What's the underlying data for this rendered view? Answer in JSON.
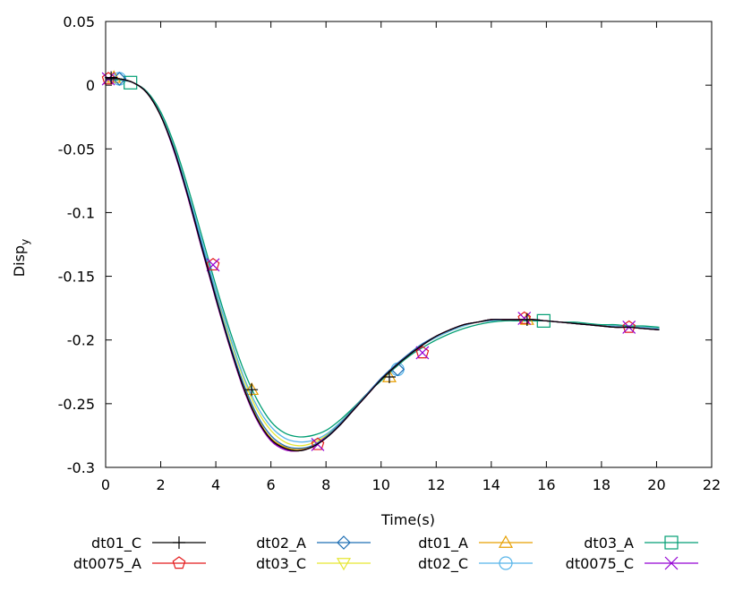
{
  "chart_data": {
    "type": "line",
    "xlabel": "Time(s)",
    "ylabel": "Disp",
    "ylabel_subscript": "y",
    "xlim": [
      0,
      22
    ],
    "ylim": [
      -0.3,
      0.05
    ],
    "xticks": [
      0,
      2,
      4,
      6,
      8,
      10,
      12,
      14,
      16,
      18,
      20,
      22
    ],
    "yticks": [
      0.05,
      0,
      -0.05,
      -0.1,
      -0.15,
      -0.2,
      -0.25,
      -0.3
    ],
    "grid": false,
    "legend_position": "bottom",
    "series": [
      {
        "name": "dt01_C",
        "color": "#000000",
        "marker": "plus",
        "x": [
          0,
          0.5,
          1,
          1.5,
          2,
          2.5,
          3,
          3.5,
          4,
          4.5,
          5,
          5.5,
          6,
          6.5,
          7,
          7.5,
          8,
          8.5,
          9,
          9.5,
          10,
          10.5,
          11,
          11.5,
          12,
          12.5,
          13,
          13.5,
          14,
          14.5,
          15,
          15.5,
          16,
          16.5,
          17,
          17.5,
          18,
          18.5,
          19,
          19.5,
          20.1
        ],
        "y": [
          0.005,
          0.005,
          0.002,
          -0.006,
          -0.024,
          -0.052,
          -0.088,
          -0.128,
          -0.167,
          -0.204,
          -0.237,
          -0.262,
          -0.278,
          -0.285,
          -0.287,
          -0.284,
          -0.277,
          -0.267,
          -0.255,
          -0.243,
          -0.231,
          -0.221,
          -0.212,
          -0.204,
          -0.197,
          -0.192,
          -0.188,
          -0.186,
          -0.184,
          -0.184,
          -0.184,
          -0.184,
          -0.185,
          -0.186,
          -0.187,
          -0.188,
          -0.189,
          -0.19,
          -0.19,
          -0.191,
          -0.192
        ],
        "markers_x": [
          0.2,
          5.3,
          10.3,
          15.3
        ],
        "markers_y": [
          0.006,
          -0.239,
          -0.229,
          -0.184
        ]
      },
      {
        "name": "dt0075_A",
        "color": "#e41a1c",
        "marker": "pentagon",
        "x": [
          0,
          0.5,
          1,
          1.5,
          2,
          2.5,
          3,
          3.5,
          4,
          4.5,
          5,
          5.5,
          6,
          6.5,
          7,
          7.5,
          8,
          8.5,
          9,
          9.5,
          10,
          10.5,
          11,
          11.5,
          12,
          12.5,
          13,
          13.5,
          14,
          14.5,
          15,
          15.5,
          16,
          16.5,
          17,
          17.5,
          18,
          18.5,
          19,
          19.5,
          20.1
        ],
        "y": [
          0.006,
          0.005,
          0.002,
          -0.006,
          -0.024,
          -0.052,
          -0.089,
          -0.129,
          -0.168,
          -0.205,
          -0.238,
          -0.263,
          -0.279,
          -0.286,
          -0.287,
          -0.284,
          -0.277,
          -0.267,
          -0.255,
          -0.243,
          -0.231,
          -0.221,
          -0.212,
          -0.204,
          -0.197,
          -0.192,
          -0.188,
          -0.186,
          -0.184,
          -0.184,
          -0.184,
          -0.184,
          -0.185,
          -0.186,
          -0.187,
          -0.188,
          -0.189,
          -0.19,
          -0.19,
          -0.191,
          -0.192
        ],
        "markers_x": [
          0.1,
          3.9,
          7.7,
          11.5,
          15.2,
          19.0
        ],
        "markers_y": [
          0.005,
          -0.141,
          -0.282,
          -0.21,
          -0.183,
          -0.19
        ]
      },
      {
        "name": "dt02_A",
        "color": "#1f6fb4",
        "marker": "diamond",
        "x": [
          0,
          0.5,
          1,
          1.5,
          2,
          2.5,
          3,
          3.5,
          4,
          4.5,
          5,
          5.5,
          6,
          6.5,
          7,
          7.5,
          8,
          8.5,
          9,
          9.5,
          10,
          10.5,
          11,
          11.5,
          12,
          12.5,
          13,
          13.5,
          14,
          14.5,
          15,
          15.5,
          16,
          16.5,
          17,
          17.5,
          18,
          18.5,
          19,
          19.5,
          20.1
        ],
        "y": [
          0.005,
          0.005,
          0.002,
          -0.006,
          -0.024,
          -0.051,
          -0.087,
          -0.126,
          -0.165,
          -0.202,
          -0.234,
          -0.259,
          -0.275,
          -0.283,
          -0.285,
          -0.283,
          -0.276,
          -0.266,
          -0.254,
          -0.242,
          -0.23,
          -0.22,
          -0.211,
          -0.203,
          -0.197,
          -0.192,
          -0.188,
          -0.186,
          -0.184,
          -0.184,
          -0.184,
          -0.184,
          -0.185,
          -0.186,
          -0.187,
          -0.188,
          -0.189,
          -0.19,
          -0.19,
          -0.191,
          -0.192
        ],
        "markers_x": [
          0.5,
          10.6
        ],
        "markers_y": [
          0.005,
          -0.223
        ]
      },
      {
        "name": "dt03_C",
        "color": "#e6e632",
        "marker": "triangle-down",
        "x": [
          0,
          0.5,
          1,
          1.5,
          2,
          2.5,
          3,
          3.5,
          4,
          4.5,
          5,
          5.5,
          6,
          6.5,
          7,
          7.5,
          8,
          8.5,
          9,
          9.5,
          10,
          10.5,
          11,
          11.5,
          12,
          12.5,
          13,
          13.5,
          14,
          14.5,
          15,
          15.5,
          16,
          16.5,
          17,
          17.5,
          18,
          18.5,
          19,
          19.5,
          20.1
        ],
        "y": [
          0.005,
          0.005,
          0.002,
          -0.006,
          -0.023,
          -0.05,
          -0.085,
          -0.124,
          -0.162,
          -0.198,
          -0.23,
          -0.255,
          -0.271,
          -0.28,
          -0.283,
          -0.281,
          -0.275,
          -0.265,
          -0.254,
          -0.242,
          -0.231,
          -0.221,
          -0.212,
          -0.204,
          -0.198,
          -0.193,
          -0.189,
          -0.186,
          -0.185,
          -0.184,
          -0.184,
          -0.185,
          -0.185,
          -0.186,
          -0.187,
          -0.188,
          -0.189,
          -0.189,
          -0.19,
          -0.19,
          -0.191
        ],
        "markers_x": [],
        "markers_y": []
      },
      {
        "name": "dt01_A",
        "color": "#e69f00",
        "marker": "triangle-up",
        "x": [
          0,
          0.5,
          1,
          1.5,
          2,
          2.5,
          3,
          3.5,
          4,
          4.5,
          5,
          5.5,
          6,
          6.5,
          7,
          7.5,
          8,
          8.5,
          9,
          9.5,
          10,
          10.5,
          11,
          11.5,
          12,
          12.5,
          13,
          13.5,
          14,
          14.5,
          15,
          15.5,
          16,
          16.5,
          17,
          17.5,
          18,
          18.5,
          19,
          19.5,
          20.1
        ],
        "y": [
          0.005,
          0.005,
          0.002,
          -0.006,
          -0.024,
          -0.052,
          -0.088,
          -0.128,
          -0.167,
          -0.204,
          -0.236,
          -0.261,
          -0.277,
          -0.284,
          -0.286,
          -0.283,
          -0.276,
          -0.266,
          -0.254,
          -0.242,
          -0.231,
          -0.221,
          -0.212,
          -0.204,
          -0.197,
          -0.192,
          -0.188,
          -0.186,
          -0.184,
          -0.184,
          -0.184,
          -0.184,
          -0.185,
          -0.186,
          -0.187,
          -0.188,
          -0.189,
          -0.19,
          -0.19,
          -0.191,
          -0.192
        ],
        "markers_x": [
          0.3,
          5.3,
          10.3,
          15.3
        ],
        "markers_y": [
          0.006,
          -0.239,
          -0.229,
          -0.184
        ]
      },
      {
        "name": "dt02_C",
        "color": "#56b4e9",
        "marker": "circle",
        "x": [
          0,
          0.5,
          1,
          1.5,
          2,
          2.5,
          3,
          3.5,
          4,
          4.5,
          5,
          5.5,
          6,
          6.5,
          7,
          7.5,
          8,
          8.5,
          9,
          9.5,
          10,
          10.5,
          11,
          11.5,
          12,
          12.5,
          13,
          13.5,
          14,
          14.5,
          15,
          15.5,
          16,
          16.5,
          17,
          17.5,
          18,
          18.5,
          19,
          19.5,
          20.1
        ],
        "y": [
          0.005,
          0.005,
          0.002,
          -0.006,
          -0.023,
          -0.05,
          -0.085,
          -0.123,
          -0.161,
          -0.196,
          -0.228,
          -0.252,
          -0.268,
          -0.277,
          -0.28,
          -0.279,
          -0.274,
          -0.265,
          -0.254,
          -0.242,
          -0.231,
          -0.221,
          -0.212,
          -0.204,
          -0.198,
          -0.193,
          -0.189,
          -0.186,
          -0.185,
          -0.184,
          -0.184,
          -0.185,
          -0.185,
          -0.186,
          -0.187,
          -0.188,
          -0.189,
          -0.189,
          -0.19,
          -0.19,
          -0.191
        ],
        "markers_x": [
          0.5,
          10.6
        ],
        "markers_y": [
          0.005,
          -0.223
        ]
      },
      {
        "name": "dt03_A",
        "color": "#009e73",
        "marker": "square",
        "x": [
          0,
          0.5,
          1,
          1.5,
          2,
          2.5,
          3,
          3.5,
          4,
          4.5,
          5,
          5.5,
          6,
          6.5,
          7,
          7.5,
          8,
          8.5,
          9,
          9.5,
          10,
          10.5,
          11,
          11.5,
          12,
          12.5,
          13,
          13.5,
          14,
          14.5,
          15,
          15.5,
          16,
          16.5,
          17,
          17.5,
          18,
          18.5,
          19,
          19.5,
          20.1
        ],
        "y": [
          0.004,
          0.004,
          0.002,
          -0.005,
          -0.021,
          -0.047,
          -0.081,
          -0.119,
          -0.157,
          -0.192,
          -0.223,
          -0.247,
          -0.264,
          -0.273,
          -0.276,
          -0.275,
          -0.271,
          -0.263,
          -0.253,
          -0.242,
          -0.232,
          -0.222,
          -0.213,
          -0.206,
          -0.2,
          -0.195,
          -0.191,
          -0.188,
          -0.186,
          -0.185,
          -0.185,
          -0.185,
          -0.185,
          -0.186,
          -0.186,
          -0.187,
          -0.188,
          -0.188,
          -0.189,
          -0.189,
          -0.19
        ],
        "markers_x": [
          0.9,
          15.9
        ],
        "markers_y": [
          0.002,
          -0.185
        ]
      },
      {
        "name": "dt0075_C",
        "color": "#9400d3",
        "marker": "x",
        "x": [
          0,
          0.5,
          1,
          1.5,
          2,
          2.5,
          3,
          3.5,
          4,
          4.5,
          5,
          5.5,
          6,
          6.5,
          7,
          7.5,
          8,
          8.5,
          9,
          9.5,
          10,
          10.5,
          11,
          11.5,
          12,
          12.5,
          13,
          13.5,
          14,
          14.5,
          15,
          15.5,
          16,
          16.5,
          17,
          17.5,
          18,
          18.5,
          19,
          19.5,
          20.1
        ],
        "y": [
          0.006,
          0.005,
          0.002,
          -0.006,
          -0.024,
          -0.053,
          -0.089,
          -0.129,
          -0.168,
          -0.205,
          -0.238,
          -0.263,
          -0.279,
          -0.286,
          -0.287,
          -0.284,
          -0.277,
          -0.267,
          -0.255,
          -0.243,
          -0.231,
          -0.221,
          -0.212,
          -0.204,
          -0.197,
          -0.192,
          -0.188,
          -0.186,
          -0.184,
          -0.184,
          -0.184,
          -0.184,
          -0.185,
          -0.186,
          -0.187,
          -0.188,
          -0.189,
          -0.19,
          -0.19,
          -0.191,
          -0.192
        ],
        "markers_x": [
          0.1,
          3.9,
          7.7,
          11.5,
          15.2,
          19.0
        ],
        "markers_y": [
          0.005,
          -0.141,
          -0.282,
          -0.21,
          -0.183,
          -0.19
        ]
      }
    ]
  }
}
